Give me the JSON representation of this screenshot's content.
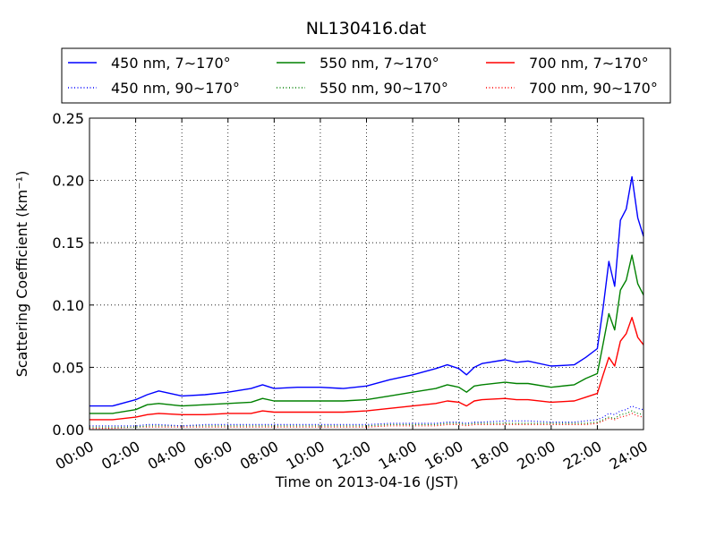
{
  "chart_data": {
    "type": "line",
    "title": "NL130416.dat",
    "xlabel": "Time on 2013-04-16 (JST)",
    "ylabel": "Scattering Coefficient (km⁻¹)",
    "xlim": [
      "00:00",
      "24:00"
    ],
    "ylim": [
      0,
      0.25
    ],
    "grid": true,
    "legend_position": "top, above plot, 3 columns",
    "xticks": [
      "00:00",
      "02:00",
      "04:00",
      "06:00",
      "08:00",
      "10:00",
      "12:00",
      "14:00",
      "16:00",
      "18:00",
      "20:00",
      "22:00",
      "24:00"
    ],
    "yticks": [
      "0.00",
      "0.05",
      "0.10",
      "0.15",
      "0.20",
      "0.25"
    ],
    "x": [
      "00:00",
      "01:00",
      "02:00",
      "02:30",
      "03:00",
      "04:00",
      "05:00",
      "06:00",
      "07:00",
      "07:30",
      "08:00",
      "09:00",
      "10:00",
      "11:00",
      "12:00",
      "13:00",
      "14:00",
      "15:00",
      "15:30",
      "16:00",
      "16:20",
      "16:40",
      "17:00",
      "18:00",
      "18:30",
      "19:00",
      "20:00",
      "21:00",
      "21:30",
      "22:00",
      "22:15",
      "22:30",
      "22:45",
      "23:00",
      "23:15",
      "23:30",
      "23:45",
      "24:00"
    ],
    "series": [
      {
        "name": "450 nm, 7∼170°",
        "color": "#0000ff",
        "style": "solid",
        "values": [
          0.019,
          0.019,
          0.024,
          0.028,
          0.031,
          0.027,
          0.028,
          0.03,
          0.033,
          0.036,
          0.033,
          0.034,
          0.034,
          0.033,
          0.035,
          0.04,
          0.044,
          0.049,
          0.052,
          0.049,
          0.044,
          0.05,
          0.053,
          0.056,
          0.054,
          0.055,
          0.051,
          0.052,
          0.058,
          0.065,
          0.098,
          0.135,
          0.115,
          0.168,
          0.177,
          0.203,
          0.17,
          0.155
        ]
      },
      {
        "name": "550 nm, 7∼170°",
        "color": "#008000",
        "style": "solid",
        "values": [
          0.013,
          0.013,
          0.016,
          0.02,
          0.021,
          0.019,
          0.02,
          0.021,
          0.022,
          0.025,
          0.023,
          0.023,
          0.023,
          0.023,
          0.024,
          0.027,
          0.03,
          0.033,
          0.036,
          0.034,
          0.03,
          0.035,
          0.036,
          0.038,
          0.037,
          0.037,
          0.034,
          0.036,
          0.041,
          0.045,
          0.069,
          0.093,
          0.08,
          0.112,
          0.12,
          0.14,
          0.117,
          0.108
        ]
      },
      {
        "name": "700 nm, 7∼170°",
        "color": "#ff0000",
        "style": "solid",
        "values": [
          0.008,
          0.008,
          0.01,
          0.012,
          0.013,
          0.012,
          0.012,
          0.013,
          0.013,
          0.015,
          0.014,
          0.014,
          0.014,
          0.014,
          0.015,
          0.017,
          0.019,
          0.021,
          0.023,
          0.022,
          0.019,
          0.023,
          0.024,
          0.025,
          0.024,
          0.024,
          0.022,
          0.023,
          0.026,
          0.029,
          0.044,
          0.058,
          0.051,
          0.071,
          0.077,
          0.09,
          0.074,
          0.068
        ]
      },
      {
        "name": "450 nm, 90∼170°",
        "color": "#0000ff",
        "style": "dotted",
        "values": [
          0.003,
          0.003,
          0.003,
          0.004,
          0.004,
          0.003,
          0.004,
          0.004,
          0.004,
          0.004,
          0.004,
          0.004,
          0.004,
          0.004,
          0.004,
          0.005,
          0.005,
          0.005,
          0.006,
          0.006,
          0.005,
          0.006,
          0.006,
          0.007,
          0.007,
          0.007,
          0.006,
          0.006,
          0.007,
          0.008,
          0.01,
          0.013,
          0.012,
          0.015,
          0.016,
          0.019,
          0.017,
          0.016
        ]
      },
      {
        "name": "550 nm, 90∼170°",
        "color": "#008000",
        "style": "dotted",
        "values": [
          0.002,
          0.002,
          0.002,
          0.003,
          0.003,
          0.003,
          0.003,
          0.003,
          0.003,
          0.003,
          0.003,
          0.003,
          0.003,
          0.003,
          0.003,
          0.004,
          0.004,
          0.004,
          0.005,
          0.005,
          0.004,
          0.005,
          0.005,
          0.005,
          0.005,
          0.005,
          0.005,
          0.005,
          0.005,
          0.006,
          0.008,
          0.01,
          0.009,
          0.012,
          0.013,
          0.015,
          0.013,
          0.012
        ]
      },
      {
        "name": "700 nm, 90∼170°",
        "color": "#ff0000",
        "style": "dotted",
        "values": [
          0.001,
          0.001,
          0.002,
          0.002,
          0.002,
          0.002,
          0.002,
          0.002,
          0.002,
          0.002,
          0.002,
          0.002,
          0.002,
          0.002,
          0.002,
          0.003,
          0.003,
          0.003,
          0.004,
          0.004,
          0.003,
          0.004,
          0.004,
          0.004,
          0.004,
          0.004,
          0.004,
          0.004,
          0.004,
          0.005,
          0.007,
          0.009,
          0.008,
          0.01,
          0.011,
          0.013,
          0.011,
          0.01
        ]
      }
    ]
  }
}
